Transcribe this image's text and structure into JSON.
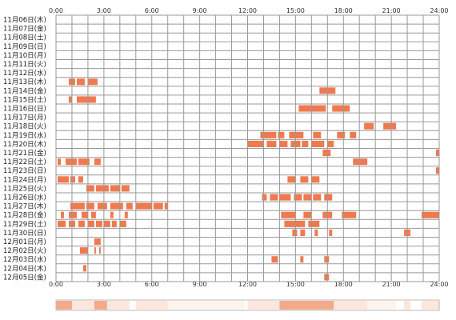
{
  "chart_data": {
    "type": "timeline",
    "x_ticks": [
      "0:00",
      "3:00",
      "6:00",
      "9:00",
      "12:00",
      "15:00",
      "18:00",
      "21:00",
      "24:00"
    ],
    "x_range_hours": [
      0,
      24
    ],
    "colors": {
      "bar": "#ef7a50",
      "grid": "#999999",
      "summary_strong": "#f4a98a",
      "summary_light": "#fde6dc"
    },
    "rows": [
      {
        "label": "11月06日(木)",
        "spans": []
      },
      {
        "label": "11月07日(金)",
        "spans": []
      },
      {
        "label": "11月08日(土)",
        "spans": []
      },
      {
        "label": "11月09日(日)",
        "spans": []
      },
      {
        "label": "11月10日(月)",
        "spans": []
      },
      {
        "label": "11月11日(火)",
        "spans": []
      },
      {
        "label": "11月12日(水)",
        "spans": []
      },
      {
        "label": "11月13日(木)",
        "spans": [
          [
            0.8,
            1.2
          ],
          [
            1.3,
            1.8
          ],
          [
            2.0,
            2.6
          ]
        ]
      },
      {
        "label": "11月14日(金)",
        "spans": [
          [
            16.5,
            17.5
          ]
        ]
      },
      {
        "label": "11月15日(土)",
        "spans": [
          [
            0.8,
            1.0
          ],
          [
            1.3,
            2.5
          ]
        ]
      },
      {
        "label": "11月16日(日)",
        "spans": [
          [
            15.2,
            16.9
          ],
          [
            17.3,
            18.4
          ]
        ]
      },
      {
        "label": "11月17日(月)",
        "spans": []
      },
      {
        "label": "11月18日(火)",
        "spans": [
          [
            19.3,
            19.9
          ],
          [
            20.5,
            21.3
          ]
        ]
      },
      {
        "label": "11月19日(水)",
        "spans": [
          [
            12.8,
            13.8
          ],
          [
            13.9,
            14.3
          ],
          [
            14.6,
            15.5
          ],
          [
            16.1,
            16.6
          ],
          [
            17.6,
            18.1
          ],
          [
            18.4,
            18.8
          ]
        ]
      },
      {
        "label": "11月20日(木)",
        "spans": [
          [
            12.0,
            13.0
          ],
          [
            13.2,
            13.8
          ],
          [
            14.0,
            14.5
          ],
          [
            14.7,
            15.3
          ],
          [
            15.4,
            15.8
          ],
          [
            16.0,
            16.8
          ],
          [
            17.0,
            17.4
          ]
        ]
      },
      {
        "label": "11月21日(金)",
        "spans": [
          [
            16.7,
            17.2
          ],
          [
            23.8,
            24.0
          ]
        ]
      },
      {
        "label": "11月22日(土)",
        "spans": [
          [
            0.1,
            0.3
          ],
          [
            0.6,
            1.3
          ],
          [
            1.4,
            2.1
          ],
          [
            2.4,
            2.8
          ],
          [
            18.6,
            19.5
          ]
        ]
      },
      {
        "label": "11月23日(日)",
        "spans": [
          [
            23.8,
            24.0
          ]
        ]
      },
      {
        "label": "11月24日(月)",
        "spans": [
          [
            0.1,
            0.8
          ],
          [
            0.9,
            1.2
          ],
          [
            1.4,
            1.7
          ],
          [
            14.5,
            15.0
          ],
          [
            15.3,
            15.8
          ],
          [
            16.0,
            16.5
          ]
        ]
      },
      {
        "label": "11月25日(火)",
        "spans": [
          [
            1.9,
            2.4
          ],
          [
            2.5,
            3.3
          ],
          [
            3.4,
            4.0
          ],
          [
            4.1,
            4.6
          ]
        ]
      },
      {
        "label": "11月26日(水)",
        "spans": [
          [
            12.9,
            13.2
          ],
          [
            13.4,
            13.9
          ],
          [
            14.0,
            14.7
          ],
          [
            14.9,
            15.4
          ],
          [
            15.5,
            16.0
          ],
          [
            16.1,
            16.6
          ],
          [
            16.8,
            17.3
          ]
        ]
      },
      {
        "label": "11月27日(木)",
        "spans": [
          [
            0.9,
            1.8
          ],
          [
            1.9,
            2.4
          ],
          [
            2.6,
            3.2
          ],
          [
            3.4,
            4.2
          ],
          [
            4.4,
            4.8
          ],
          [
            5.0,
            6.0
          ],
          [
            6.1,
            6.7
          ],
          [
            6.8,
            7.0
          ]
        ]
      },
      {
        "label": "11月28日(金)",
        "spans": [
          [
            0.3,
            0.5
          ],
          [
            0.8,
            1.3
          ],
          [
            1.6,
            2.0
          ],
          [
            2.2,
            2.5
          ],
          [
            3.4,
            3.6
          ],
          [
            4.3,
            4.5
          ],
          [
            14.1,
            15.0
          ],
          [
            15.5,
            16.0
          ],
          [
            16.7,
            17.3
          ],
          [
            17.9,
            18.8
          ],
          [
            22.9,
            24.0
          ]
        ]
      },
      {
        "label": "11月29日(土)",
        "spans": [
          [
            0.1,
            0.6
          ],
          [
            0.8,
            1.2
          ],
          [
            1.4,
            1.8
          ],
          [
            2.0,
            2.4
          ],
          [
            2.5,
            2.9
          ],
          [
            3.0,
            3.4
          ],
          [
            3.5,
            3.8
          ],
          [
            4.0,
            4.4
          ],
          [
            14.3,
            15.6
          ],
          [
            15.8,
            16.5
          ]
        ]
      },
      {
        "label": "11月30日(日)",
        "spans": [
          [
            14.8,
            15.1
          ],
          [
            15.3,
            15.6
          ],
          [
            16.2,
            16.4
          ],
          [
            17.1,
            17.3
          ],
          [
            21.8,
            22.2
          ]
        ]
      },
      {
        "label": "12月01日(月)",
        "spans": [
          [
            2.4,
            2.8
          ]
        ]
      },
      {
        "label": "12月02日(火)",
        "spans": [
          [
            1.5,
            2.0
          ],
          [
            2.4,
            2.5
          ],
          [
            2.7,
            2.8
          ]
        ]
      },
      {
        "label": "12月03日(水)",
        "spans": [
          [
            13.5,
            13.9
          ],
          [
            15.3,
            15.5
          ],
          [
            16.8,
            17.1
          ]
        ]
      },
      {
        "label": "12月04日(木)",
        "spans": [
          [
            1.7,
            1.9
          ]
        ]
      },
      {
        "label": "12月05日(金)",
        "spans": [
          [
            16.8,
            17.1
          ]
        ]
      }
    ],
    "summary_segments": [
      [
        0.0,
        1.0,
        "strong"
      ],
      [
        1.0,
        2.4,
        "light"
      ],
      [
        2.4,
        3.2,
        "strong"
      ],
      [
        3.2,
        4.6,
        "light"
      ],
      [
        5.0,
        7.0,
        "light"
      ],
      [
        7.0,
        11.8,
        "faint"
      ],
      [
        12.0,
        14.0,
        "light"
      ],
      [
        14.0,
        17.4,
        "strong"
      ],
      [
        17.4,
        19.5,
        "light"
      ],
      [
        19.5,
        21.3,
        "faint"
      ],
      [
        21.8,
        22.2,
        "light"
      ],
      [
        22.9,
        24.0,
        "light"
      ]
    ]
  }
}
